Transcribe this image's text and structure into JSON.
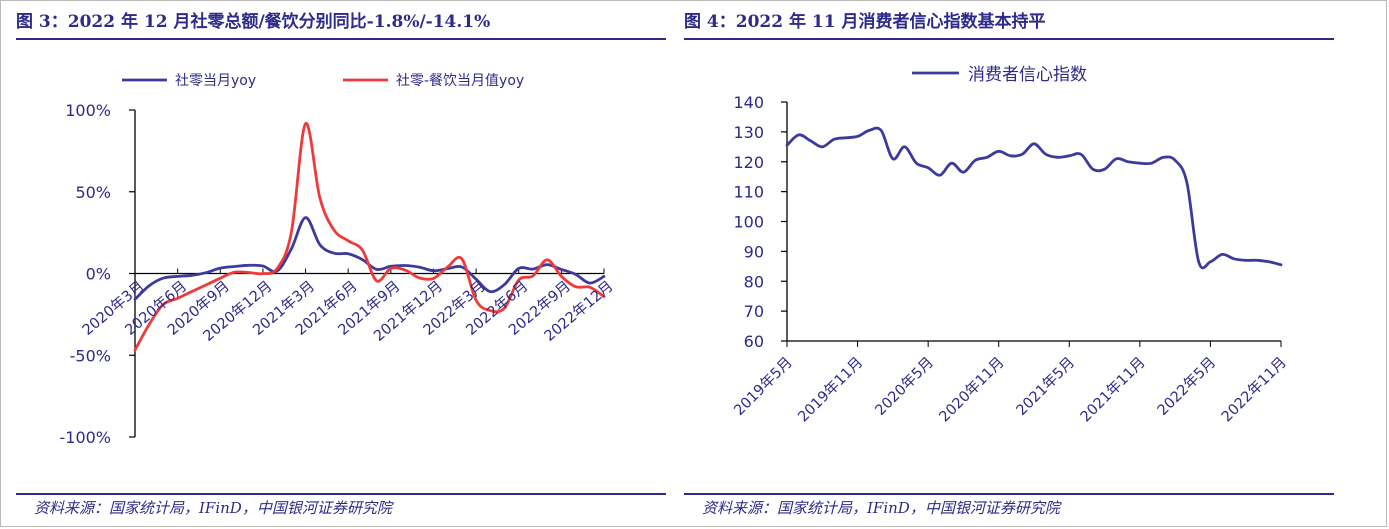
{
  "left": {
    "title": "图 3：2022 年 12 月社零总额/餐饮分别同比-1.8%/-14.1%",
    "source": "资料来源：国家统计局，IFinD，中国银河证券研究院"
  },
  "right": {
    "title": "图 4：2022 年 11 月消费者信心指数基本持平",
    "source": "资料来源：国家统计局，IFinD，中国银河证券研究院"
  },
  "chart_data": [
    {
      "type": "line",
      "title": "",
      "xlabel": "",
      "ylabel": "",
      "ylim": [
        -100,
        100
      ],
      "yticks": [
        "100%",
        "50%",
        "0%",
        "-50%",
        "-100%"
      ],
      "ytick_values": [
        100,
        50,
        0,
        -50,
        -100
      ],
      "x_tick_labels": [
        "2020年3月",
        "2020年6月",
        "2020年9月",
        "2020年12月",
        "2021年3月",
        "2021年6月",
        "2021年9月",
        "2021年12月",
        "2022年3月",
        "2022年6月",
        "2022年9月",
        "2022年12月"
      ],
      "x": [
        "2020-03",
        "2020-04",
        "2020-05",
        "2020-06",
        "2020-07",
        "2020-08",
        "2020-09",
        "2020-10",
        "2020-11",
        "2020-12",
        "2021-01",
        "2021-02",
        "2021-03",
        "2021-04",
        "2021-05",
        "2021-06",
        "2021-07",
        "2021-08",
        "2021-09",
        "2021-10",
        "2021-11",
        "2021-12",
        "2022-01",
        "2022-02",
        "2022-03",
        "2022-04",
        "2022-05",
        "2022-06",
        "2022-07",
        "2022-08",
        "2022-09",
        "2022-10",
        "2022-11",
        "2022-12"
      ],
      "legend_position": "top",
      "grid": false,
      "series": [
        {
          "name": "社零当月yoy",
          "color": "#3d3a9c",
          "values": [
            -15.8,
            -7.5,
            -2.8,
            -1.8,
            -1.1,
            0.5,
            3.3,
            4.3,
            5.0,
            4.6,
            1.5,
            15.0,
            34.2,
            17.7,
            12.4,
            12.1,
            8.5,
            2.5,
            4.4,
            4.9,
            3.9,
            1.7,
            3.0,
            4.0,
            -3.5,
            -11.1,
            -6.7,
            3.1,
            2.7,
            5.4,
            2.5,
            -0.5,
            -5.9,
            -1.8
          ]
        },
        {
          "name": "社零-餐饮当月值yoy",
          "color": "#f03a3a",
          "values": [
            -46.8,
            -31.1,
            -18.9,
            -15.2,
            -11.0,
            -7.0,
            -2.9,
            0.8,
            0.6,
            -0.1,
            3.0,
            25.0,
            91.6,
            46.4,
            26.6,
            20.0,
            14.3,
            -4.5,
            3.1,
            2.1,
            -2.7,
            -3.0,
            4.0,
            8.9,
            -16.4,
            -22.7,
            -21.1,
            -4.0,
            -1.5,
            8.4,
            -1.7,
            -8.1,
            -8.4,
            -14.1
          ]
        }
      ]
    },
    {
      "type": "line",
      "title": "",
      "xlabel": "",
      "ylabel": "",
      "ylim": [
        60,
        140
      ],
      "yticks": [
        "140",
        "130",
        "120",
        "110",
        "100",
        "90",
        "80",
        "70",
        "60"
      ],
      "ytick_values": [
        140,
        130,
        120,
        110,
        100,
        90,
        80,
        70,
        60
      ],
      "x_tick_labels": [
        "2019年5月",
        "2019年11月",
        "2020年5月",
        "2020年11月",
        "2021年5月",
        "2021年11月",
        "2022年5月",
        "2022年11月"
      ],
      "x": [
        "2019-05",
        "2019-06",
        "2019-07",
        "2019-08",
        "2019-09",
        "2019-10",
        "2019-11",
        "2019-12",
        "2020-01",
        "2020-02",
        "2020-03",
        "2020-04",
        "2020-05",
        "2020-06",
        "2020-07",
        "2020-08",
        "2020-09",
        "2020-10",
        "2020-11",
        "2020-12",
        "2021-01",
        "2021-02",
        "2021-03",
        "2021-04",
        "2021-05",
        "2021-06",
        "2021-07",
        "2021-08",
        "2021-09",
        "2021-10",
        "2021-11",
        "2021-12",
        "2022-01",
        "2022-02",
        "2022-03",
        "2022-04",
        "2022-05",
        "2022-06",
        "2022-07",
        "2022-08",
        "2022-09",
        "2022-10",
        "2022-11"
      ],
      "legend_position": "top",
      "grid": false,
      "series": [
        {
          "name": "消费者信心指数",
          "color": "#3d3a9c",
          "values": [
            125.5,
            129.0,
            127.0,
            125.0,
            127.5,
            128.0,
            128.5,
            130.5,
            130.5,
            121.0,
            125.0,
            119.5,
            118.0,
            115.5,
            119.5,
            116.5,
            120.5,
            121.5,
            123.5,
            122.0,
            122.5,
            126.0,
            122.5,
            121.5,
            122.0,
            122.5,
            117.5,
            117.5,
            121.0,
            120.0,
            119.5,
            119.5,
            121.5,
            120.5,
            113.0,
            86.5,
            86.5,
            89.0,
            87.5,
            87.0,
            87.0,
            86.5,
            85.5
          ]
        }
      ]
    }
  ]
}
